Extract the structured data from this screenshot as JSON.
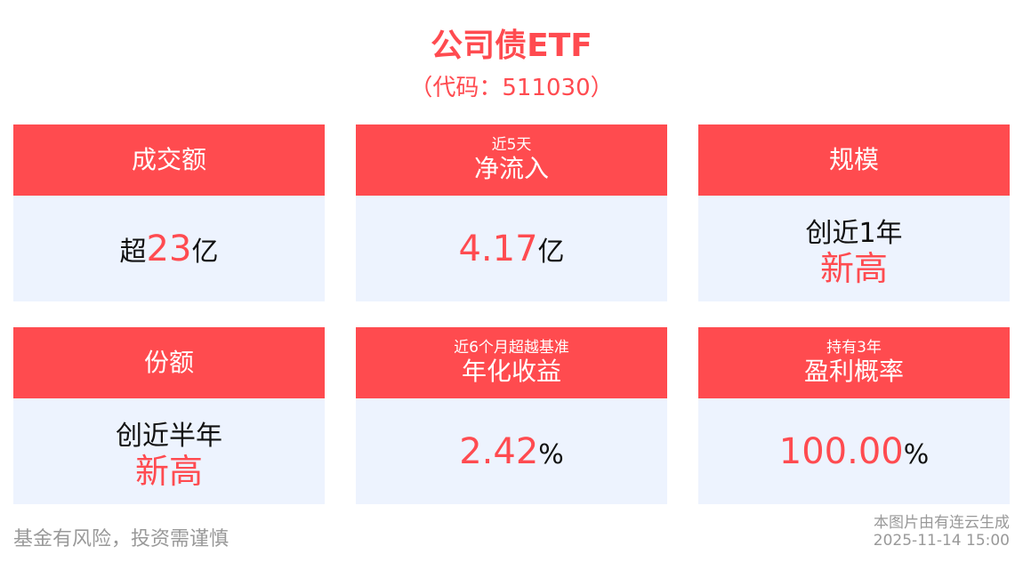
{
  "header": {
    "title": "公司债ETF",
    "code": "（代码：511030）"
  },
  "cards": [
    {
      "sub": "",
      "label": "成交额",
      "pre": "超",
      "value": "23",
      "suf": "亿"
    },
    {
      "sub": "近5天",
      "label": "净流入",
      "pre": "",
      "value": "4.17",
      "suf": "亿"
    },
    {
      "sub": "",
      "label": "规模",
      "line1": "创近1年",
      "line2": "新高"
    },
    {
      "sub": "",
      "label": "份额",
      "line1": "创近半年",
      "line2": "新高"
    },
    {
      "sub": "近6个月超越基准",
      "label": "年化收益",
      "pre": "",
      "value": "2.42",
      "suf": "%"
    },
    {
      "sub": "持有3年",
      "label": "盈利概率",
      "pre": "",
      "value": "100.00",
      "suf": "%"
    }
  ],
  "footer": {
    "disclaimer": "基金有风险，投资需谨慎",
    "source": "本图片由有连云生成",
    "timestamp": "2025-11-14 15:00"
  },
  "colors": {
    "accent": "#ff4b4f",
    "card_body": "#edf3fe"
  }
}
